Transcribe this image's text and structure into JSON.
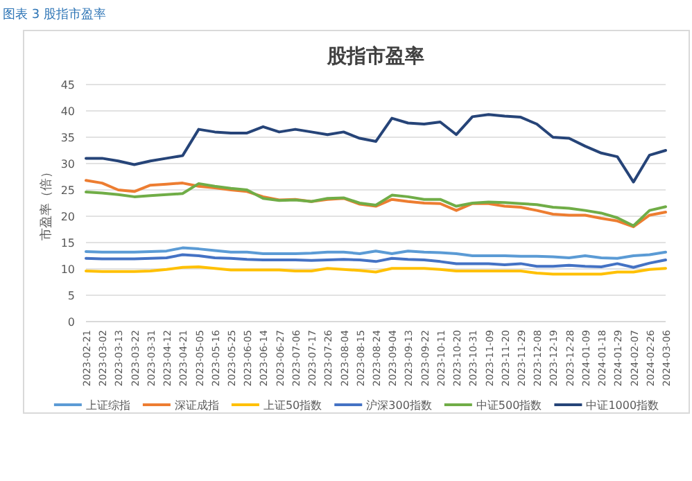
{
  "chart_data": {
    "type": "line",
    "title": "股指市盈率",
    "ylabel": "市盈率（倍）",
    "annotations": [
      "图表 3 股指市盈率"
    ],
    "categories": [
      "2023-02-21",
      "2023-03-02",
      "2023-03-13",
      "2023-03-22",
      "2023-03-31",
      "2023-04-12",
      "2023-04-21",
      "2023-05-05",
      "2023-05-16",
      "2023-05-25",
      "2023-06-05",
      "2023-06-14",
      "2023-06-27",
      "2023-07-06",
      "2023-07-17",
      "2023-07-26",
      "2023-08-04",
      "2023-08-15",
      "2023-08-24",
      "2023-09-04",
      "2023-09-13",
      "2023-09-22",
      "2023-10-11",
      "2023-10-20",
      "2023-10-31",
      "2023-11-09",
      "2023-11-20",
      "2023-11-29",
      "2023-12-08",
      "2023-12-19",
      "2023-12-28",
      "2024-01-09",
      "2024-01-18",
      "2024-01-29",
      "2024-02-07",
      "2024-02-26",
      "2024-03-06"
    ],
    "ylim": [
      0,
      45
    ],
    "yticks": [
      0,
      5,
      10,
      15,
      20,
      25,
      30,
      35,
      40,
      45
    ],
    "grid": "y",
    "legend": "bottom",
    "series": [
      {
        "name": "上证综指",
        "color": "#5b9bd5",
        "values": [
          13.3,
          13.2,
          13.2,
          13.2,
          13.3,
          13.4,
          14,
          13.8,
          13.5,
          13.2,
          13.2,
          12.9,
          12.9,
          12.9,
          13,
          13.2,
          13.2,
          12.9,
          13.4,
          12.9,
          13.4,
          13.2,
          13.1,
          12.9,
          12.5,
          12.5,
          12.5,
          12.4,
          12.4,
          12.3,
          12.1,
          12.5,
          12.1,
          12,
          12.5,
          12.7,
          13.2
        ]
      },
      {
        "name": "深证成指",
        "color": "#ed7d31",
        "values": [
          26.8,
          26.3,
          25,
          24.7,
          25.9,
          26.1,
          26.3,
          25.7,
          25.4,
          25,
          24.7,
          23.7,
          23.1,
          23.2,
          22.8,
          23.2,
          23.4,
          22.3,
          21.9,
          23.2,
          22.8,
          22.5,
          22.4,
          21.1,
          22.4,
          22.4,
          21.9,
          21.7,
          21.1,
          20.4,
          20.2,
          20.2,
          19.6,
          19.1,
          18,
          20.2,
          20.8
        ]
      },
      {
        "name": "上证50指数",
        "color": "#ffc000",
        "values": [
          9.6,
          9.5,
          9.5,
          9.5,
          9.6,
          9.9,
          10.3,
          10.4,
          10.1,
          9.8,
          9.8,
          9.8,
          9.8,
          9.6,
          9.6,
          10.1,
          9.9,
          9.7,
          9.4,
          10.1,
          10.1,
          10.1,
          9.9,
          9.6,
          9.6,
          9.6,
          9.6,
          9.6,
          9.2,
          9,
          9,
          9,
          9,
          9.4,
          9.4,
          9.9,
          10.1
        ]
      },
      {
        "name": "沪深300指数",
        "color": "#4472c4",
        "values": [
          12,
          11.9,
          11.9,
          11.9,
          12,
          12.1,
          12.7,
          12.5,
          12.1,
          12,
          11.8,
          11.7,
          11.7,
          11.7,
          11.6,
          11.7,
          11.8,
          11.7,
          11.4,
          12,
          11.8,
          11.7,
          11.4,
          11,
          11,
          11,
          10.8,
          11,
          10.5,
          10.5,
          10.7,
          10.5,
          10.4,
          11,
          10.3,
          11.1,
          11.7
        ]
      },
      {
        "name": "中证500指数",
        "color": "#70ad47",
        "values": [
          24.6,
          24.4,
          24.1,
          23.7,
          23.9,
          24.1,
          24.3,
          26.2,
          25.7,
          25.3,
          25,
          23.4,
          23,
          23.1,
          22.8,
          23.4,
          23.5,
          22.5,
          22.1,
          24,
          23.7,
          23.2,
          23.2,
          21.9,
          22.5,
          22.7,
          22.6,
          22.4,
          22.2,
          21.7,
          21.5,
          21.1,
          20.6,
          19.7,
          18.2,
          21.1,
          21.8
        ]
      },
      {
        "name": "中证1000指数",
        "color": "#264478",
        "values": [
          31,
          31,
          30.5,
          29.8,
          30.5,
          31,
          31.5,
          36.5,
          36,
          35.8,
          35.8,
          37,
          36,
          36.5,
          36,
          35.5,
          36,
          34.8,
          34.2,
          38.6,
          37.7,
          37.5,
          37.9,
          35.5,
          38.9,
          39.3,
          39,
          38.8,
          37.5,
          35,
          34.8,
          33.3,
          32,
          31.3,
          26.5,
          31.6,
          32.5
        ]
      }
    ]
  }
}
